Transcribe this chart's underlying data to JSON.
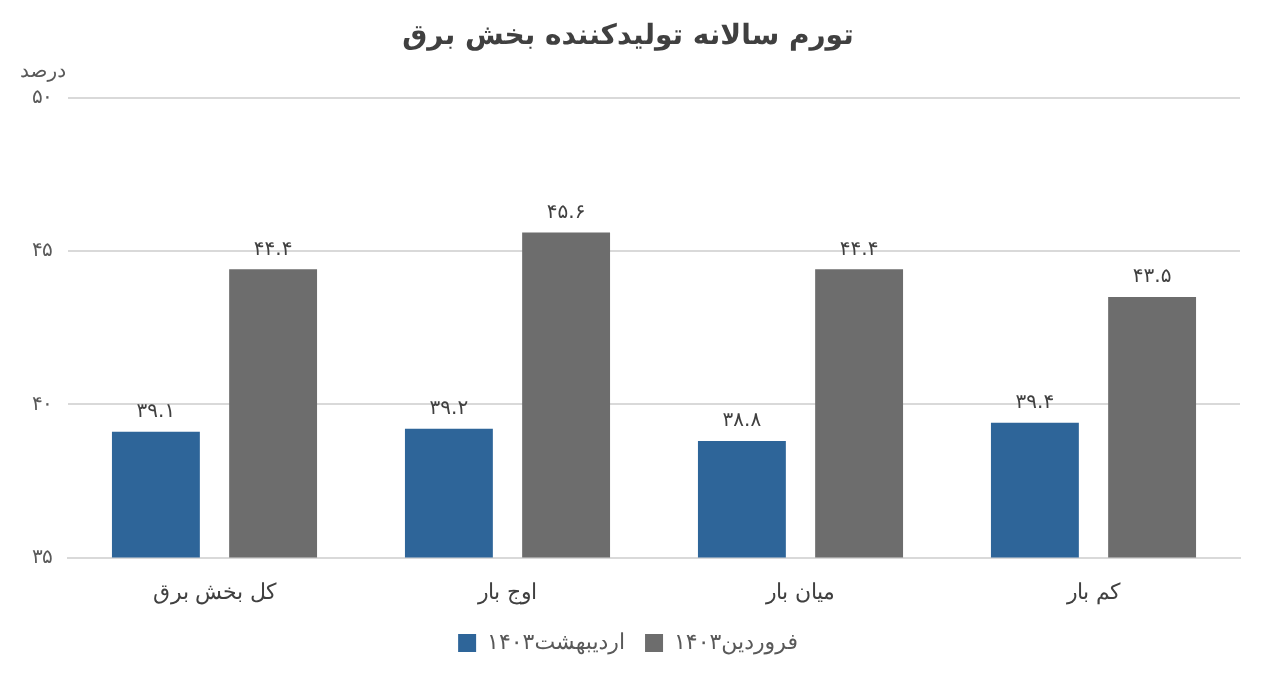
{
  "chart_data": {
    "type": "bar",
    "title": "تورم سالانه تولیدکننده بخش برق",
    "ylabel": "درصد",
    "categories": [
      "کل بخش برق",
      "اوج بار",
      "میان بار",
      "کم بار"
    ],
    "series": [
      {
        "name": "اردیبهشت۱۴۰۳",
        "color": "#2e6599",
        "values": [
          39.1,
          39.2,
          38.8,
          39.4
        ],
        "value_labels": [
          "۳۹.۱",
          "۳۹.۲",
          "۳۸.۸",
          "۳۹.۴"
        ]
      },
      {
        "name": "فروردین۱۴۰۳",
        "color": "#6d6d6d",
        "values": [
          44.4,
          45.6,
          44.4,
          43.5
        ],
        "value_labels": [
          "۴۴.۴",
          "۴۵.۶",
          "۴۴.۴",
          "۴۳.۵"
        ]
      }
    ],
    "ylim": [
      35,
      50
    ],
    "yticks": [
      {
        "value": 35,
        "label": "۳۵"
      },
      {
        "value": 40,
        "label": "۴۰"
      },
      {
        "value": 45,
        "label": "۴۵"
      },
      {
        "value": 50,
        "label": "۵۰"
      }
    ],
    "grid": "y",
    "legend": "bottom"
  }
}
